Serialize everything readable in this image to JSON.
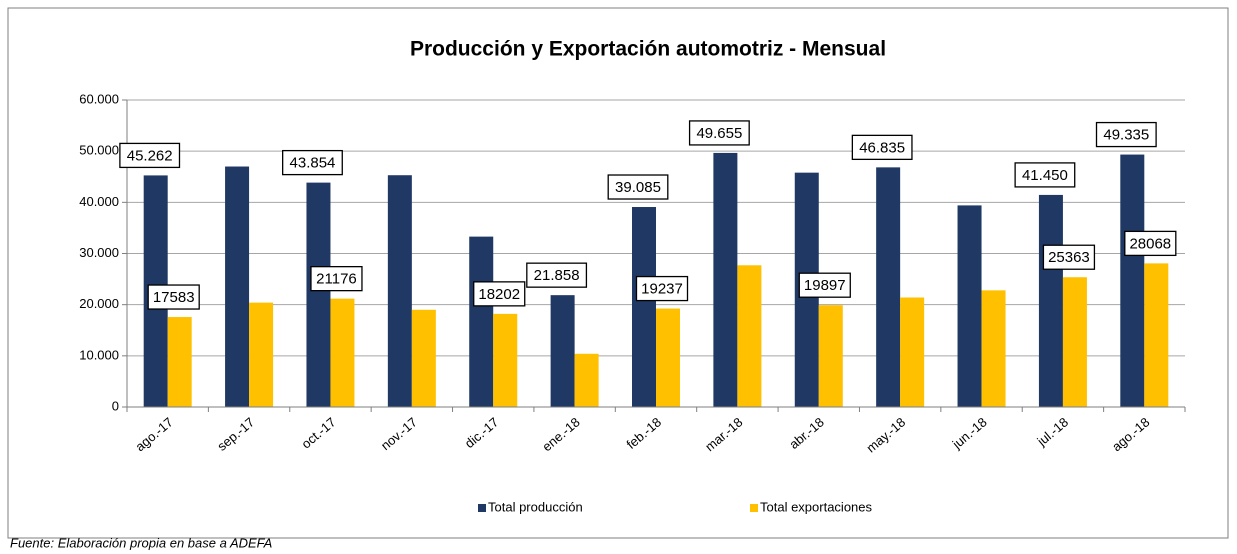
{
  "chart_data": {
    "type": "bar",
    "title": "Producción y Exportación automotriz - Mensual",
    "note": "Fuente: Elaboración propia en base a ADEFA",
    "categories": [
      "ago.-17",
      "sep.-17",
      "oct.-17",
      "nov.-17",
      "dic.-17",
      "ene.-18",
      "feb.-18",
      "mar.-18",
      "abr.-18",
      "may.-18",
      "jun.-18",
      "jul.-18",
      "ago.-18"
    ],
    "series": [
      {
        "name": "Total producción",
        "color": "#203864",
        "values": [
          45262,
          47000,
          43854,
          45300,
          33300,
          21858,
          39085,
          49655,
          45800,
          46835,
          39400,
          41450,
          49335
        ],
        "value_labels": [
          "45.262",
          null,
          "43.854",
          null,
          null,
          "21.858",
          "39.085",
          "49.655",
          null,
          "46.835",
          null,
          "41.450",
          "49.335"
        ]
      },
      {
        "name": "Total exportaciones",
        "color": "#ffc000",
        "values": [
          17583,
          20400,
          21176,
          19000,
          18202,
          10400,
          19237,
          27700,
          19897,
          21400,
          22800,
          25363,
          28068
        ],
        "value_labels": [
          "17583",
          null,
          "21176",
          null,
          "18202",
          null,
          "19237",
          null,
          "19897",
          null,
          null,
          "25363",
          "28068"
        ]
      }
    ],
    "ylim": [
      0,
      60000
    ],
    "yticks": [
      0,
      {
        "value": 10000,
        "label": "10.000"
      },
      {
        "value": 20000,
        "label": "20.000"
      },
      {
        "value": 30000,
        "label": "30.000"
      },
      {
        "value": 40000,
        "label": "40.000"
      },
      {
        "value": 50000,
        "label": "50.000"
      },
      {
        "value": 60000,
        "label": "60.000"
      }
    ],
    "grid": true,
    "legend": "bottom"
  }
}
